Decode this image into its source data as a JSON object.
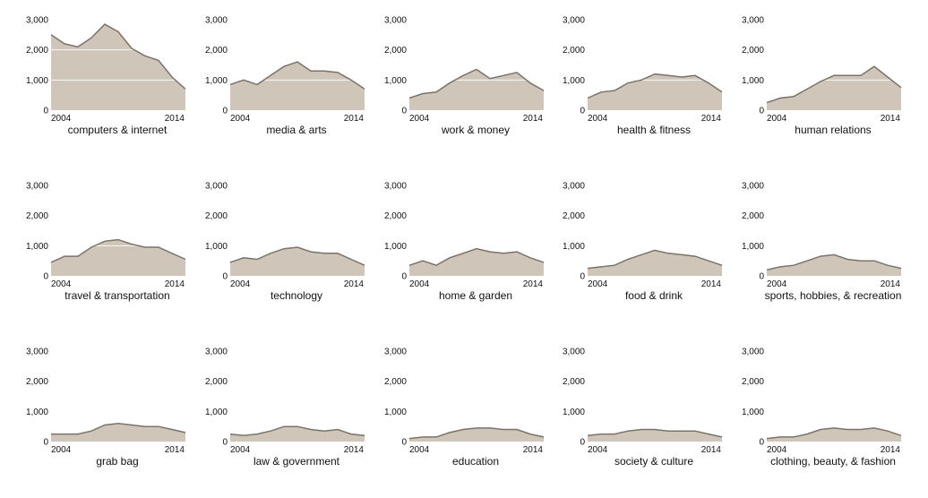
{
  "chart_data": {
    "type": "area",
    "ylim": [
      0,
      3000
    ],
    "yticks": [
      0,
      1000,
      2000,
      3000
    ],
    "ytick_labels": [
      "0",
      "1,000",
      "2,000",
      "3,000"
    ],
    "xlim": [
      2004,
      2014
    ],
    "xtick_labels": [
      "2004",
      "2014"
    ],
    "x": [
      2003,
      2004,
      2005,
      2006,
      2007,
      2008,
      2009,
      2010,
      2011,
      2012,
      2013
    ],
    "colors": {
      "fill": "#cfc5b8",
      "line": "#7a736c"
    },
    "panels": [
      {
        "name": "computers & internet",
        "values": [
          2500,
          2200,
          2100,
          2400,
          2850,
          2600,
          2050,
          1800,
          1650,
          1100,
          700
        ]
      },
      {
        "name": "media & arts",
        "values": [
          850,
          1000,
          850,
          1150,
          1450,
          1600,
          1300,
          1300,
          1250,
          1000,
          700
        ]
      },
      {
        "name": "work & money",
        "values": [
          400,
          550,
          600,
          900,
          1150,
          1350,
          1050,
          1150,
          1250,
          900,
          650
        ]
      },
      {
        "name": "health & fitness",
        "values": [
          400,
          600,
          650,
          900,
          1000,
          1200,
          1150,
          1100,
          1150,
          900,
          600
        ]
      },
      {
        "name": "human relations",
        "values": [
          250,
          400,
          450,
          700,
          950,
          1150,
          1150,
          1150,
          1450,
          1100,
          750
        ]
      },
      {
        "name": "travel & transportation",
        "values": [
          450,
          650,
          650,
          950,
          1150,
          1200,
          1050,
          950,
          950,
          750,
          550
        ]
      },
      {
        "name": "technology",
        "values": [
          450,
          600,
          550,
          750,
          900,
          950,
          800,
          750,
          750,
          550,
          350
        ]
      },
      {
        "name": "home & garden",
        "values": [
          350,
          500,
          350,
          600,
          750,
          900,
          800,
          750,
          800,
          600,
          450
        ]
      },
      {
        "name": "food & drink",
        "values": [
          250,
          300,
          350,
          550,
          700,
          850,
          750,
          700,
          650,
          500,
          350
        ]
      },
      {
        "name": "sports, hobbies, & recreation",
        "values": [
          200,
          300,
          350,
          500,
          650,
          700,
          550,
          500,
          500,
          350,
          250
        ]
      },
      {
        "name": "grab bag",
        "values": [
          250,
          250,
          250,
          350,
          550,
          600,
          550,
          500,
          500,
          400,
          300
        ]
      },
      {
        "name": "law & government",
        "values": [
          250,
          200,
          250,
          350,
          500,
          500,
          400,
          350,
          400,
          250,
          200
        ]
      },
      {
        "name": "education",
        "values": [
          100,
          150,
          150,
          300,
          400,
          450,
          450,
          400,
          400,
          250,
          150
        ]
      },
      {
        "name": "society & culture",
        "values": [
          200,
          250,
          250,
          350,
          400,
          400,
          350,
          350,
          350,
          250,
          150
        ]
      },
      {
        "name": "clothing, beauty, & fashion",
        "values": [
          100,
          150,
          150,
          250,
          400,
          450,
          400,
          400,
          450,
          350,
          200
        ]
      }
    ]
  }
}
